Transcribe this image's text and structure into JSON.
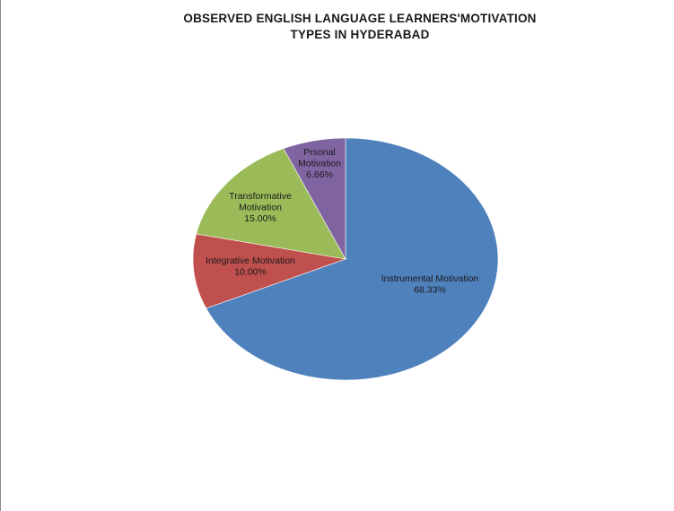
{
  "chart_data": {
    "type": "pie",
    "title_lines": [
      "OBSERVED ENGLISH LANGUAGE LEARNERS'MOTIVATION",
      "TYPES IN HYDERABAD"
    ],
    "slices": [
      {
        "name": "Instrumental  Motivation",
        "value": 68.33,
        "label_lines": [
          "Instrumental  Motivation",
          "68.33%"
        ],
        "color": "#4F81BD"
      },
      {
        "name": "Integrative  Motivation",
        "value": 10.0,
        "label_lines": [
          "Integrative  Motivation",
          "10.00%"
        ],
        "color": "#C0504D"
      },
      {
        "name": "Transformative Motivation",
        "value": 15.0,
        "label_lines": [
          "Transformative",
          "Motivation",
          "15.00%"
        ],
        "color": "#9BBB59"
      },
      {
        "name": "Prsonal Motivation",
        "value": 6.66,
        "label_lines": [
          "Prsonal",
          "Motivation",
          "6.66%"
        ],
        "color": "#8064A2"
      }
    ],
    "start_angle_deg": 0,
    "direction": "clockwise",
    "legend": "none"
  }
}
